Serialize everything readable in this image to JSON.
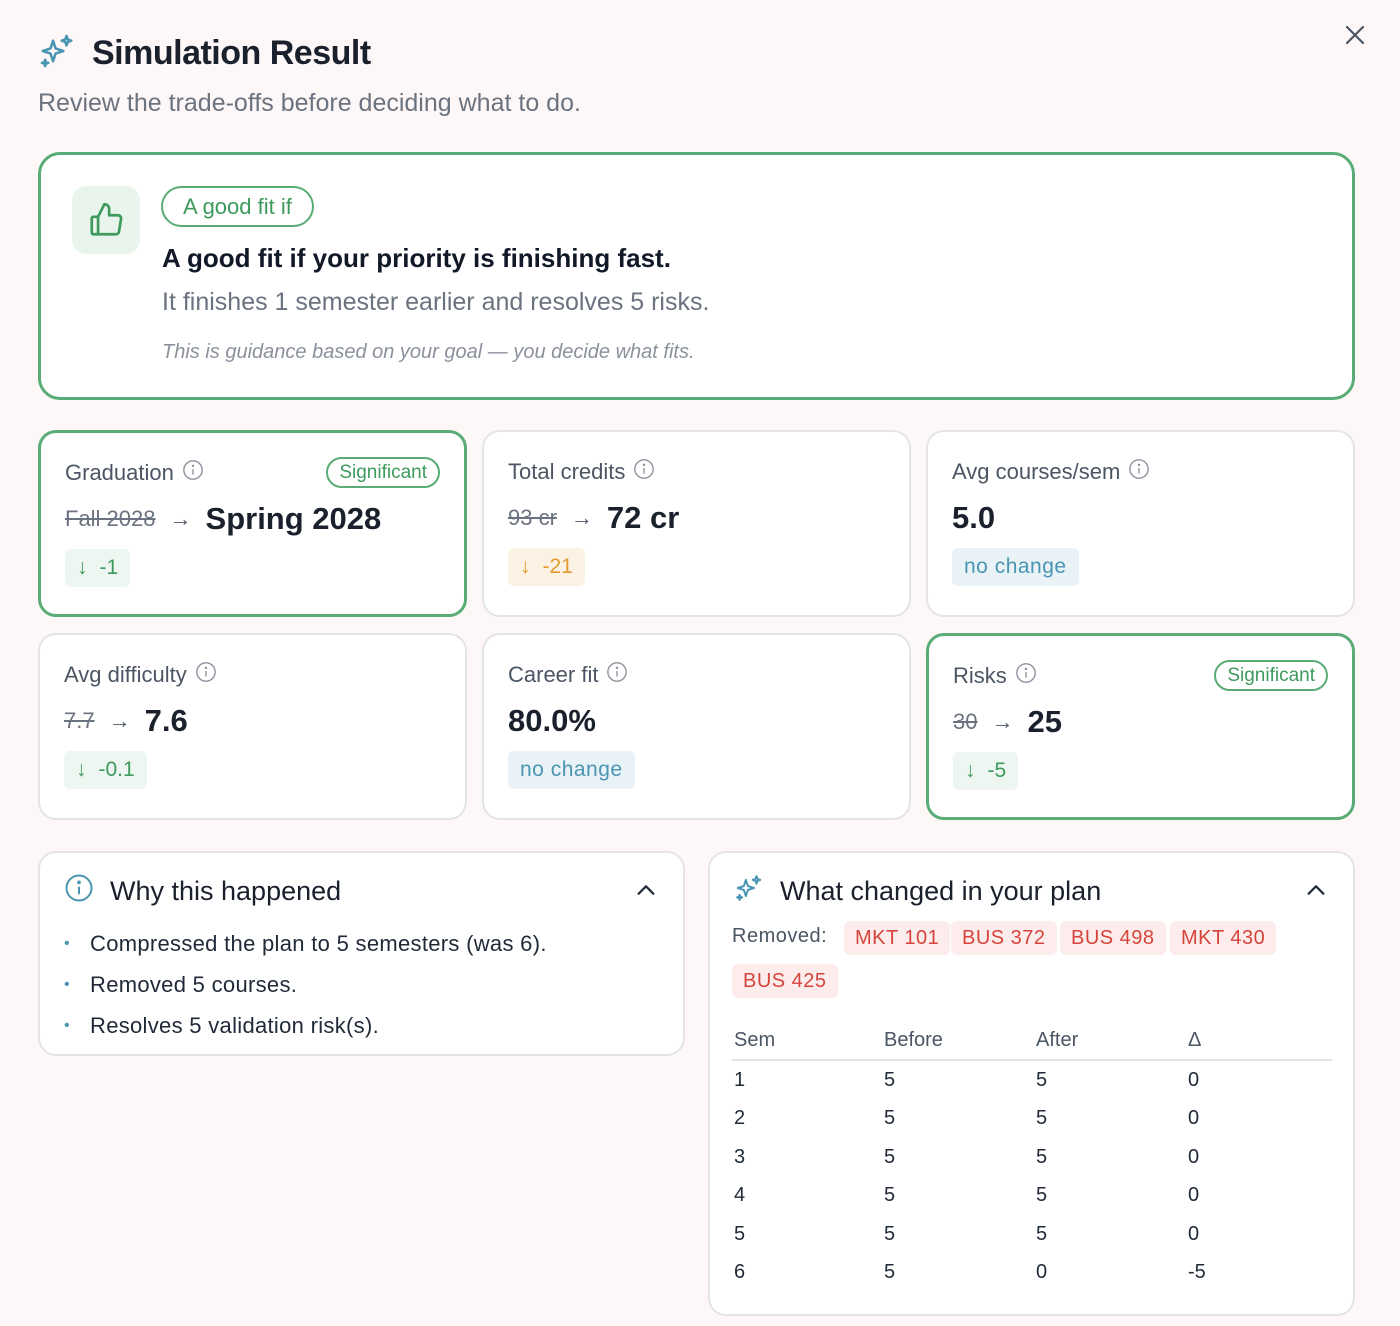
{
  "header": {
    "title": "Simulation Result",
    "subtitle": "Review the trade-offs before deciding what to do."
  },
  "fit": {
    "pill": "A good fit if",
    "headline": "A good fit if your priority is finishing fast.",
    "detail": "It finishes 1 semester earlier and resolves 5 risks.",
    "note": "This is guidance based on your goal — you decide what fits."
  },
  "metrics": [
    {
      "label": "Graduation",
      "significant": "Significant",
      "old": "Fall 2028",
      "new": "Spring 2028",
      "delta": "-1",
      "delta_kind": "green"
    },
    {
      "label": "Total credits",
      "old": "93 cr",
      "new": "72 cr",
      "delta": "-21",
      "delta_kind": "orange"
    },
    {
      "label": "Avg courses/sem",
      "new": "5.0",
      "delta": "no change",
      "delta_kind": "blue"
    },
    {
      "label": "Avg difficulty",
      "old": "7.7",
      "new": "7.6",
      "delta": "-0.1",
      "delta_kind": "green"
    },
    {
      "label": "Career fit",
      "new": "80.0%",
      "delta": "no change",
      "delta_kind": "blue"
    },
    {
      "label": "Risks",
      "significant": "Significant",
      "old": "30",
      "new": "25",
      "delta": "-5",
      "delta_kind": "green"
    }
  ],
  "why": {
    "title": "Why this happened",
    "items": [
      "Compressed the plan to 5 semesters (was 6).",
      "Removed 5 courses.",
      "Resolves 5 validation risk(s)."
    ]
  },
  "changes": {
    "title": "What changed in your plan",
    "removed_label": "Removed:",
    "removed": [
      "MKT 101",
      "BUS 372",
      "BUS 498",
      "MKT 430",
      "BUS 425"
    ],
    "table": {
      "headers": [
        "Sem",
        "Before",
        "After",
        "Δ"
      ],
      "rows": [
        [
          "1",
          "5",
          "5",
          "0"
        ],
        [
          "2",
          "5",
          "5",
          "0"
        ],
        [
          "3",
          "5",
          "5",
          "0"
        ],
        [
          "4",
          "5",
          "5",
          "0"
        ],
        [
          "5",
          "5",
          "5",
          "0"
        ],
        [
          "6",
          "5",
          "0",
          "-5"
        ]
      ]
    }
  },
  "colors": {
    "accent_green": "#5aac77",
    "accent_blue": "#4a95b2",
    "removed_red": "#d6453d",
    "warning_orange": "#e09b2d"
  },
  "icons": {
    "title": "sparkle-icon",
    "close": "close-icon",
    "fit": "thumbs-up-icon",
    "info": "info-icon",
    "collapse": "chevron-up-icon"
  }
}
